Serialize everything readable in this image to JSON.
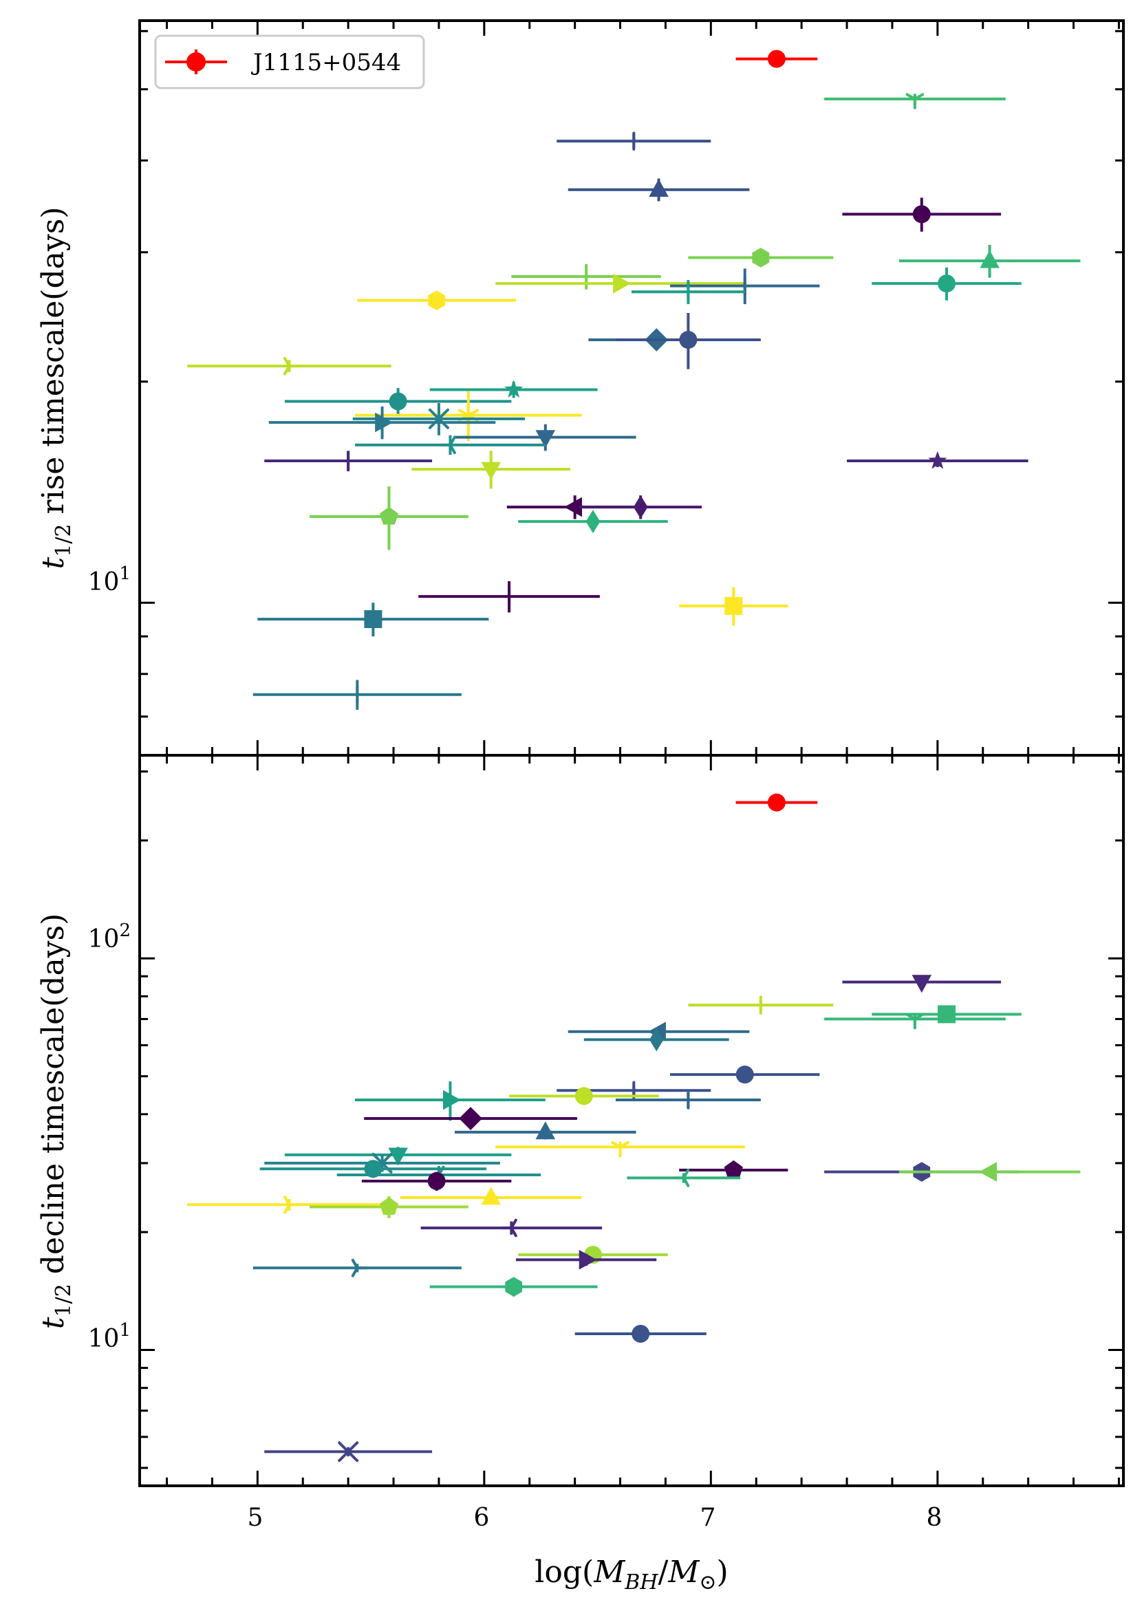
{
  "chart_data": [
    {
      "panel": "top",
      "type": "scatter",
      "ylabel": "t_{1/2} rise timescale(days)",
      "ylabel_parts": {
        "sym": "t",
        "sub": "1/2",
        "rest": " rise timescale(days)"
      },
      "yscale": "log",
      "ylim": [
        6.2,
        62
      ],
      "xlim": [
        4.48,
        8.82
      ],
      "ytick_labels": [
        {
          "value": 10,
          "base": "10",
          "exp": "1"
        }
      ],
      "legend": {
        "label": "J1115+0544",
        "color": "#ff0000",
        "position": "top-left"
      },
      "points": [
        {
          "x": 7.29,
          "y": 55.0,
          "xerr": 0.18,
          "yerr": 0.0,
          "color": "#ff0000",
          "marker": "o"
        },
        {
          "x": 7.9,
          "y": 48.5,
          "xerr": 0.4,
          "yerr": 0.8,
          "color": "#3ebd6f",
          "marker": "tri_down"
        },
        {
          "x": 6.66,
          "y": 42.5,
          "xerr": 0.34,
          "yerr": 0.9,
          "color": "#3d4e8a",
          "marker": "vline"
        },
        {
          "x": 6.77,
          "y": 36.5,
          "xerr": 0.4,
          "yerr": 1.3,
          "color": "#39528b",
          "marker": "^"
        },
        {
          "x": 7.93,
          "y": 33.8,
          "xerr": 0.35,
          "yerr": 1.8,
          "color": "#440154",
          "marker": "o"
        },
        {
          "x": 7.22,
          "y": 29.5,
          "xerr": 0.32,
          "yerr": 0.5,
          "color": "#7ad151",
          "marker": "h"
        },
        {
          "x": 8.23,
          "y": 29.2,
          "xerr": 0.4,
          "yerr": 1.5,
          "color": "#35b779",
          "marker": "^"
        },
        {
          "x": 6.45,
          "y": 27.8,
          "xerr": 0.33,
          "yerr": 1.1,
          "color": "#7ad151",
          "marker": "vline"
        },
        {
          "x": 6.6,
          "y": 27.2,
          "xerr": 0.55,
          "yerr": 0.4,
          "color": "#bddf26",
          "marker": ">"
        },
        {
          "x": 8.04,
          "y": 27.2,
          "xerr": 0.33,
          "yerr": 1.4,
          "color": "#22a884",
          "marker": "o"
        },
        {
          "x": 7.15,
          "y": 27.0,
          "xerr": 0.33,
          "yerr": 1.5,
          "color": "#31688e",
          "marker": "vline"
        },
        {
          "x": 6.9,
          "y": 26.5,
          "xerr": 0.25,
          "yerr": 1.0,
          "color": "#1f9e89",
          "marker": "vline"
        },
        {
          "x": 5.79,
          "y": 25.8,
          "xerr": 0.35,
          "yerr": 0.4,
          "color": "#fde725",
          "marker": "h"
        },
        {
          "x": 6.76,
          "y": 22.8,
          "xerr": 0.3,
          "yerr": 0.6,
          "color": "#31688e",
          "marker": "D"
        },
        {
          "x": 6.9,
          "y": 22.8,
          "xerr": 0.32,
          "yerr": 2.0,
          "color": "#3b528b",
          "marker": "o"
        },
        {
          "x": 5.14,
          "y": 21.0,
          "xerr": 0.45,
          "yerr": 0.4,
          "color": "#bddf26",
          "marker": "tri_right"
        },
        {
          "x": 6.13,
          "y": 19.5,
          "xerr": 0.37,
          "yerr": 0.5,
          "color": "#1fa187",
          "marker": "star"
        },
        {
          "x": 5.62,
          "y": 18.8,
          "xerr": 0.5,
          "yerr": 0.8,
          "color": "#21918c",
          "marker": "o"
        },
        {
          "x": 5.93,
          "y": 18.0,
          "xerr": 0.5,
          "yerr": 1.4,
          "color": "#fde725",
          "marker": "asterisk"
        },
        {
          "x": 5.8,
          "y": 17.8,
          "xerr": 0.38,
          "yerr": 0.9,
          "color": "#26828e",
          "marker": "x"
        },
        {
          "x": 5.55,
          "y": 17.6,
          "xerr": 0.5,
          "yerr": 0.9,
          "color": "#2a788e",
          "marker": ">"
        },
        {
          "x": 6.27,
          "y": 16.8,
          "xerr": 0.4,
          "yerr": 0.7,
          "color": "#31688e",
          "marker": "v"
        },
        {
          "x": 5.85,
          "y": 16.4,
          "xerr": 0.42,
          "yerr": 0.5,
          "color": "#21918c",
          "marker": "tri_left"
        },
        {
          "x": 5.4,
          "y": 15.6,
          "xerr": 0.37,
          "yerr": 0.5,
          "color": "#482878",
          "marker": "vline"
        },
        {
          "x": 8.0,
          "y": 15.6,
          "xerr": 0.4,
          "yerr": 0.3,
          "color": "#482878",
          "marker": "star"
        },
        {
          "x": 6.03,
          "y": 15.2,
          "xerr": 0.35,
          "yerr": 0.9,
          "color": "#bddf26",
          "marker": "v"
        },
        {
          "x": 6.4,
          "y": 13.5,
          "xerr": 0.3,
          "yerr": 0.5,
          "color": "#440154",
          "marker": "<"
        },
        {
          "x": 6.69,
          "y": 13.5,
          "xerr": 0.27,
          "yerr": 0.5,
          "color": "#481a6c",
          "marker": "d"
        },
        {
          "x": 5.58,
          "y": 13.1,
          "xerr": 0.35,
          "yerr": 1.3,
          "color": "#7ad151",
          "marker": "p"
        },
        {
          "x": 6.48,
          "y": 12.9,
          "xerr": 0.33,
          "yerr": 0.4,
          "color": "#2db27d",
          "marker": "d"
        },
        {
          "x": 6.11,
          "y": 10.2,
          "xerr": 0.4,
          "yerr": 0.5,
          "color": "#440154",
          "marker": "vline"
        },
        {
          "x": 7.1,
          "y": 9.9,
          "xerr": 0.24,
          "yerr": 0.6,
          "color": "#fde725",
          "marker": "s"
        },
        {
          "x": 5.51,
          "y": 9.5,
          "xerr": 0.51,
          "yerr": 0.5,
          "color": "#2a788e",
          "marker": "s"
        },
        {
          "x": 5.44,
          "y": 7.5,
          "xerr": 0.46,
          "yerr": 0.35,
          "color": "#2a788e",
          "marker": "vline"
        }
      ]
    },
    {
      "panel": "bottom",
      "type": "scatter",
      "xlabel": "log(M_{BH}/M_⊙)",
      "xlabel_parts": {
        "pre": "log(",
        "M1": "M",
        "sub1": "BH",
        "slash": "/",
        "M2": "M",
        "sub2": "⊙",
        "post": ")"
      },
      "ylabel": "t_{1/2} decline timescale(days)",
      "ylabel_parts": {
        "sym": "t",
        "sub": "1/2",
        "rest": " decline timescale(days)"
      },
      "yscale": "log",
      "ylim": [
        4.5,
        330
      ],
      "xlim": [
        4.48,
        8.82
      ],
      "xtick_labels": [
        {
          "value": 5,
          "label": "5"
        },
        {
          "value": 6,
          "label": "6"
        },
        {
          "value": 7,
          "label": "7"
        },
        {
          "value": 8,
          "label": "8"
        }
      ],
      "ytick_labels": [
        {
          "value": 10,
          "base": "10",
          "exp": "1"
        },
        {
          "value": 100,
          "base": "10",
          "exp": "2"
        }
      ],
      "points": [
        {
          "x": 7.29,
          "y": 250.0,
          "xerr": 0.18,
          "yerr": 0.0,
          "color": "#ff0000",
          "marker": "o"
        },
        {
          "x": 7.93,
          "y": 87.0,
          "xerr": 0.35,
          "yerr": 2.0,
          "color": "#482878",
          "marker": "v"
        },
        {
          "x": 7.22,
          "y": 76.0,
          "xerr": 0.32,
          "yerr": 2.0,
          "color": "#bddf26",
          "marker": "vline"
        },
        {
          "x": 8.04,
          "y": 72.0,
          "xerr": 0.33,
          "yerr": 2.0,
          "color": "#35b779",
          "marker": "s"
        },
        {
          "x": 7.9,
          "y": 70.0,
          "xerr": 0.4,
          "yerr": 1.5,
          "color": "#35b779",
          "marker": "tri_down"
        },
        {
          "x": 6.77,
          "y": 65.0,
          "xerr": 0.4,
          "yerr": 1.5,
          "color": "#31688e",
          "marker": "<"
        },
        {
          "x": 6.76,
          "y": 62.0,
          "xerr": 0.32,
          "yerr": 1.5,
          "color": "#2a788e",
          "marker": "d"
        },
        {
          "x": 7.15,
          "y": 50.5,
          "xerr": 0.33,
          "yerr": 2.0,
          "color": "#3b528b",
          "marker": "o"
        },
        {
          "x": 6.66,
          "y": 46.0,
          "xerr": 0.34,
          "yerr": 1.5,
          "color": "#3d4e8a",
          "marker": "vline"
        },
        {
          "x": 6.44,
          "y": 44.5,
          "xerr": 0.33,
          "yerr": 1.0,
          "color": "#bddf26",
          "marker": "o"
        },
        {
          "x": 6.9,
          "y": 43.5,
          "xerr": 0.32,
          "yerr": 2.0,
          "color": "#31688e",
          "marker": "vline"
        },
        {
          "x": 5.85,
          "y": 43.5,
          "xerr": 0.42,
          "yerr": 5.0,
          "color": "#1fa187",
          "marker": ">"
        },
        {
          "x": 5.94,
          "y": 39.0,
          "xerr": 0.47,
          "yerr": 1.5,
          "color": "#440154",
          "marker": "D"
        },
        {
          "x": 6.27,
          "y": 36.0,
          "xerr": 0.4,
          "yerr": 1.5,
          "color": "#31688e",
          "marker": "^"
        },
        {
          "x": 6.6,
          "y": 33.0,
          "xerr": 0.55,
          "yerr": 1.0,
          "color": "#fde725",
          "marker": "tri_down"
        },
        {
          "x": 5.62,
          "y": 31.5,
          "xerr": 0.5,
          "yerr": 1.5,
          "color": "#1f9e89",
          "marker": "v"
        },
        {
          "x": 5.55,
          "y": 30.0,
          "xerr": 0.52,
          "yerr": 1.5,
          "color": "#26828e",
          "marker": "x"
        },
        {
          "x": 5.51,
          "y": 29.0,
          "xerr": 0.5,
          "yerr": 1.5,
          "color": "#21918c",
          "marker": "o"
        },
        {
          "x": 7.1,
          "y": 28.8,
          "xerr": 0.24,
          "yerr": 1.0,
          "color": "#440154",
          "marker": "p"
        },
        {
          "x": 7.93,
          "y": 28.5,
          "xerr": 0.43,
          "yerr": 0.8,
          "color": "#414487",
          "marker": "h"
        },
        {
          "x": 8.23,
          "y": 28.5,
          "xerr": 0.4,
          "yerr": 0.8,
          "color": "#7ad151",
          "marker": "<"
        },
        {
          "x": 5.8,
          "y": 28.0,
          "xerr": 0.45,
          "yerr": 1.5,
          "color": "#21918c",
          "marker": "tri_left"
        },
        {
          "x": 6.88,
          "y": 27.5,
          "xerr": 0.25,
          "yerr": 0.8,
          "color": "#2db27d",
          "marker": "tri_left"
        },
        {
          "x": 5.79,
          "y": 27.0,
          "xerr": 0.33,
          "yerr": 1.5,
          "color": "#440154",
          "marker": "o"
        },
        {
          "x": 6.03,
          "y": 24.5,
          "xerr": 0.4,
          "yerr": 1.0,
          "color": "#fde725",
          "marker": "^"
        },
        {
          "x": 5.14,
          "y": 23.5,
          "xerr": 0.45,
          "yerr": 0.8,
          "color": "#fde725",
          "marker": "tri_right"
        },
        {
          "x": 5.58,
          "y": 23.2,
          "xerr": 0.35,
          "yerr": 1.5,
          "color": "#a0da39",
          "marker": "p"
        },
        {
          "x": 6.12,
          "y": 20.5,
          "xerr": 0.4,
          "yerr": 0.8,
          "color": "#482878",
          "marker": "tri_left"
        },
        {
          "x": 6.48,
          "y": 17.5,
          "xerr": 0.33,
          "yerr": 0.6,
          "color": "#a0da39",
          "marker": "o"
        },
        {
          "x": 6.45,
          "y": 17.0,
          "xerr": 0.31,
          "yerr": 0.6,
          "color": "#482878",
          "marker": ">"
        },
        {
          "x": 5.44,
          "y": 16.2,
          "xerr": 0.46,
          "yerr": 0.4,
          "color": "#2a788e",
          "marker": "tri_right"
        },
        {
          "x": 6.13,
          "y": 14.5,
          "xerr": 0.37,
          "yerr": 0.8,
          "color": "#35b779",
          "marker": "h"
        },
        {
          "x": 6.69,
          "y": 11.0,
          "xerr": 0.29,
          "yerr": 0.3,
          "color": "#3b528b",
          "marker": "o"
        },
        {
          "x": 5.4,
          "y": 5.5,
          "xerr": 0.37,
          "yerr": 0.15,
          "color": "#414487",
          "marker": "x"
        }
      ]
    }
  ]
}
